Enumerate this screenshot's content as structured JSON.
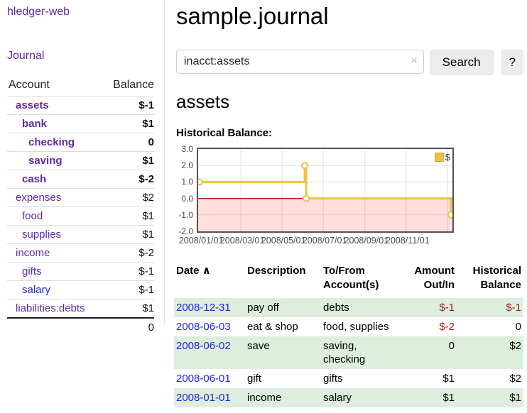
{
  "sidebar": {
    "app_title": "hledger-web",
    "journal_label": "Journal",
    "accounts_table": {
      "col_account": "Account",
      "col_balance": "Balance",
      "accounts": [
        {
          "name": "assets",
          "level": 1,
          "bold": true,
          "balance": "$-1",
          "balance_class": "bal-neg"
        },
        {
          "name": "bank",
          "level": 2,
          "bold": true,
          "balance": "$1",
          "balance_class": ""
        },
        {
          "name": "checking",
          "level": 3,
          "bold": true,
          "balance": "0",
          "balance_class": ""
        },
        {
          "name": "saving",
          "level": 3,
          "bold": true,
          "balance": "$1",
          "balance_class": ""
        },
        {
          "name": "cash",
          "level": 2,
          "bold": true,
          "balance": "$-2",
          "balance_class": "bal-neg"
        },
        {
          "name": "expenses",
          "level": 1,
          "bold": false,
          "balance": "$2",
          "balance_class": ""
        },
        {
          "name": "food",
          "level": 2,
          "bold": false,
          "balance": "$1",
          "balance_class": ""
        },
        {
          "name": "supplies",
          "level": 2,
          "bold": false,
          "balance": "$1",
          "balance_class": ""
        },
        {
          "name": "income",
          "level": 1,
          "bold": false,
          "balance": "$-2",
          "balance_class": "bal-neg-soft"
        },
        {
          "name": "gifts",
          "level": 2,
          "bold": false,
          "balance": "$-1",
          "balance_class": "bal-neg-soft"
        },
        {
          "name": "salary",
          "level": 2,
          "bold": false,
          "balance": "$-1",
          "balance_class": "bal-neg-soft",
          "blue_link": true
        },
        {
          "name": "liabilities:debts",
          "level": 1,
          "bold": false,
          "balance": "$1",
          "balance_class": ""
        }
      ],
      "total": "0"
    }
  },
  "main": {
    "title": "sample.journal",
    "search": {
      "value": "inacct:assets",
      "clear_icon": "×",
      "button_label": "Search",
      "help_label": "?"
    },
    "account_heading": "assets",
    "chart_label": "Historical Balance:",
    "register": {
      "header": {
        "date": "Date",
        "sort_icon": "∧",
        "description": "Description",
        "accounts_line1": "To/From",
        "accounts_line2": "Account(s)",
        "amount_line1": "Amount",
        "amount_line2": "Out/In",
        "balance_line1": "Historical",
        "balance_line2": "Balance"
      },
      "rows": [
        {
          "date": "2008-12-31",
          "description": "pay off",
          "accounts": "debts",
          "amount": "$-1",
          "amount_neg": true,
          "balance": "$-1",
          "balance_neg": true,
          "shaded": true
        },
        {
          "date": "2008-06-03",
          "description": "eat & shop",
          "accounts": "food, supplies",
          "amount": "$-2",
          "amount_neg": true,
          "balance": "0",
          "balance_neg": false,
          "shaded": false
        },
        {
          "date": "2008-06-02",
          "description": "save",
          "accounts": "saving, checking",
          "amount": "0",
          "amount_neg": false,
          "balance": "$2",
          "balance_neg": false,
          "shaded": true
        },
        {
          "date": "2008-06-01",
          "description": "gift",
          "accounts": "gifts",
          "amount": "$1",
          "amount_neg": false,
          "balance": "$2",
          "balance_neg": false,
          "shaded": false
        },
        {
          "date": "2008-01-01",
          "description": "income",
          "accounts": "salary",
          "amount": "$1",
          "amount_neg": false,
          "balance": "$1",
          "balance_neg": false,
          "shaded": true
        }
      ]
    }
  },
  "chart_data": {
    "type": "line",
    "title": "Historical Balance:",
    "ylim": [
      -2,
      3
    ],
    "y_ticks": [
      3.0,
      2.0,
      1.0,
      0.0,
      -1.0,
      -2.0
    ],
    "x_ticks": [
      {
        "label": "2008/01/01",
        "pos": 0.006
      },
      {
        "label": "2008/03/01",
        "pos": 0.168
      },
      {
        "label": "2008/05/01",
        "pos": 0.33
      },
      {
        "label": "2008/07/01",
        "pos": 0.492
      },
      {
        "label": "2008/09/01",
        "pos": 0.656
      },
      {
        "label": "2008/11/01",
        "pos": 0.818
      }
    ],
    "extra_gridline_pos": 0.98,
    "grid": true,
    "legend": {
      "label": "$",
      "position": "top-right"
    },
    "series": [
      {
        "name": "$",
        "color": "#EDC240",
        "data_points": [
          {
            "date": "2008-01-01",
            "value": 1
          },
          {
            "date": "2008-06-01",
            "value": 2
          },
          {
            "date": "2008-06-02",
            "value": 2
          },
          {
            "date": "2008-06-03",
            "value": 0
          },
          {
            "date": "2008-12-31",
            "value": -1
          }
        ],
        "step_points": [
          [
            0.006,
            1
          ],
          [
            0.419,
            1
          ],
          [
            0.419,
            2
          ],
          [
            0.425,
            2
          ],
          [
            0.425,
            0
          ],
          [
            0.994,
            0
          ],
          [
            0.994,
            -1
          ]
        ],
        "markers": [
          [
            0.006,
            1
          ],
          [
            0.419,
            2
          ],
          [
            0.425,
            0
          ],
          [
            0.994,
            -1
          ]
        ]
      }
    ],
    "negative_region": {
      "below": 0,
      "fill": "rgba(255,0,0,0.13)",
      "zero_line_color": "#b11a1a"
    },
    "colors": {
      "gridline": "#e0e0e0",
      "plot_border": "#545454",
      "tick_text": "#4a4a4a"
    }
  }
}
